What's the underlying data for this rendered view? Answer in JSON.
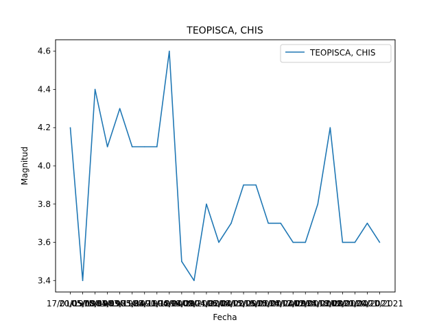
{
  "chart_data": {
    "type": "line",
    "title": "TEOPISCA, CHIS",
    "xlabel": "Fecha",
    "ylabel": "Magnitud",
    "x": [
      "17/01/1975",
      "20/05/1981",
      "05/08/1983",
      "10/09/1985",
      "14/09/1988",
      "13/11/1991",
      "25/04/1994",
      "27/11/1996",
      "20/12/2000",
      "06/04/2004",
      "19/09/2006",
      "02/11/2008",
      "24/02/2011",
      "25/04/2013",
      "18/02/2015",
      "15/05/2016",
      "16/01/2017",
      "20/07/2017",
      "24/04/2018",
      "12/09/2018",
      "02/01/2019",
      "24/02/2020",
      "13/08/2020",
      "02/01/2021",
      "21/04/2021",
      "20/10/2021"
    ],
    "series": [
      {
        "name": "TEOPISCA, CHIS",
        "color": "#1f77b4",
        "values": [
          4.2,
          3.4,
          4.4,
          4.1,
          4.3,
          4.1,
          4.1,
          4.1,
          4.6,
          3.5,
          3.4,
          3.8,
          3.6,
          3.7,
          3.9,
          3.9,
          3.7,
          3.7,
          3.6,
          3.6,
          3.8,
          4.2,
          3.6,
          3.6,
          3.7,
          3.6
        ]
      }
    ],
    "yticks": [
      "3.4",
      "3.6",
      "3.8",
      "4.0",
      "4.2",
      "4.4",
      "4.6"
    ],
    "ylim": [
      3.34,
      4.66
    ],
    "grid": false,
    "legend_position": "top-right"
  }
}
